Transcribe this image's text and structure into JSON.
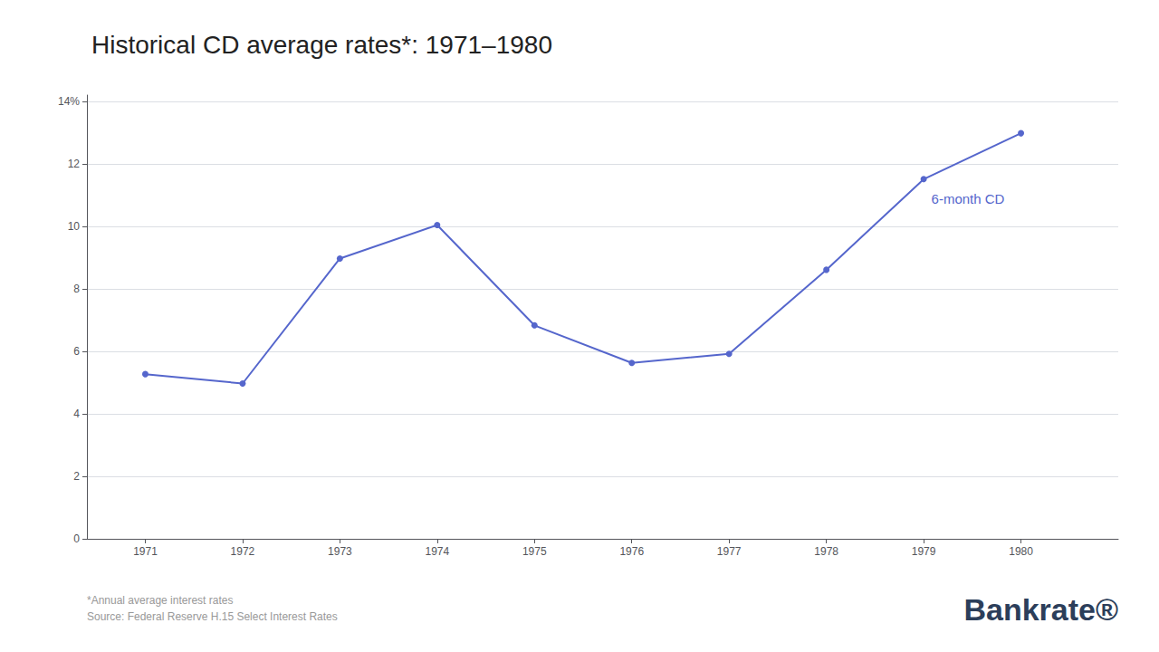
{
  "chart_data": {
    "type": "line",
    "title": "Historical CD average rates*: 1971–1980",
    "x": [
      1971,
      1972,
      1973,
      1974,
      1975,
      1976,
      1977,
      1978,
      1979,
      1980
    ],
    "series": [
      {
        "name": "6-month CD",
        "color": "#5566cc",
        "marker": "circle",
        "values": [
          5.27,
          4.97,
          8.97,
          10.04,
          6.83,
          5.63,
          5.92,
          8.61,
          11.51,
          12.98
        ]
      }
    ],
    "xlim": [
      1970.4,
      1981.0
    ],
    "xticks": [
      1971,
      1972,
      1973,
      1974,
      1975,
      1976,
      1977,
      1978,
      1979,
      1980
    ],
    "ylim": [
      0,
      14.2
    ],
    "yticks": [
      0,
      2,
      4,
      6,
      8,
      10,
      12,
      {
        "value": 14,
        "label": "14%"
      }
    ],
    "grid": true,
    "annotations": [
      "*Annual average interest rates",
      "Source: Federal Reserve H.15 Select Interest Rates",
      "Bankrate®"
    ]
  }
}
